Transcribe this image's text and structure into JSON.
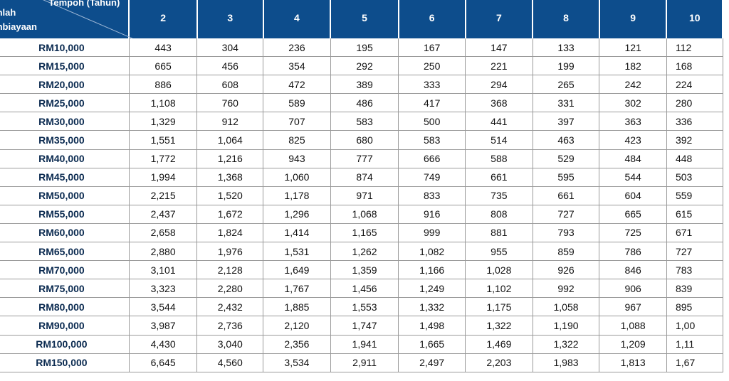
{
  "header": {
    "tenure_label": "Tempoh (Tahun)",
    "amount_label_1": "mlah",
    "amount_label_2": "mbiayaan",
    "years": [
      "2",
      "3",
      "4",
      "5",
      "6",
      "7",
      "8",
      "9",
      "10"
    ]
  },
  "rows": [
    {
      "amount": "RM10,000",
      "values": [
        "443",
        "304",
        "236",
        "195",
        "167",
        "147",
        "133",
        "121",
        "112"
      ]
    },
    {
      "amount": "RM15,000",
      "values": [
        "665",
        "456",
        "354",
        "292",
        "250",
        "221",
        "199",
        "182",
        "168"
      ]
    },
    {
      "amount": "RM20,000",
      "values": [
        "886",
        "608",
        "472",
        "389",
        "333",
        "294",
        "265",
        "242",
        "224"
      ]
    },
    {
      "amount": "RM25,000",
      "values": [
        "1,108",
        "760",
        "589",
        "486",
        "417",
        "368",
        "331",
        "302",
        "280"
      ]
    },
    {
      "amount": "RM30,000",
      "values": [
        "1,329",
        "912",
        "707",
        "583",
        "500",
        "441",
        "397",
        "363",
        "336"
      ]
    },
    {
      "amount": "RM35,000",
      "values": [
        "1,551",
        "1,064",
        "825",
        "680",
        "583",
        "514",
        "463",
        "423",
        "392"
      ]
    },
    {
      "amount": "RM40,000",
      "values": [
        "1,772",
        "1,216",
        "943",
        "777",
        "666",
        "588",
        "529",
        "484",
        "448"
      ]
    },
    {
      "amount": "RM45,000",
      "values": [
        "1,994",
        "1,368",
        "1,060",
        "874",
        "749",
        "661",
        "595",
        "544",
        "503"
      ]
    },
    {
      "amount": "RM50,000",
      "values": [
        "2,215",
        "1,520",
        "1,178",
        "971",
        "833",
        "735",
        "661",
        "604",
        "559"
      ]
    },
    {
      "amount": "RM55,000",
      "values": [
        "2,437",
        "1,672",
        "1,296",
        "1,068",
        "916",
        "808",
        "727",
        "665",
        "615"
      ]
    },
    {
      "amount": "RM60,000",
      "values": [
        "2,658",
        "1,824",
        "1,414",
        "1,165",
        "999",
        "881",
        "793",
        "725",
        "671"
      ]
    },
    {
      "amount": "RM65,000",
      "values": [
        "2,880",
        "1,976",
        "1,531",
        "1,262",
        "1,082",
        "955",
        "859",
        "786",
        "727"
      ]
    },
    {
      "amount": "RM70,000",
      "values": [
        "3,101",
        "2,128",
        "1,649",
        "1,359",
        "1,166",
        "1,028",
        "926",
        "846",
        "783"
      ]
    },
    {
      "amount": "RM75,000",
      "values": [
        "3,323",
        "2,280",
        "1,767",
        "1,456",
        "1,249",
        "1,102",
        "992",
        "906",
        "839"
      ]
    },
    {
      "amount": "RM80,000",
      "values": [
        "3,544",
        "2,432",
        "1,885",
        "1,553",
        "1,332",
        "1,175",
        "1,058",
        "967",
        "895"
      ]
    },
    {
      "amount": "RM90,000",
      "values": [
        "3,987",
        "2,736",
        "2,120",
        "1,747",
        "1,498",
        "1,322",
        "1,190",
        "1,088",
        "1,00"
      ]
    },
    {
      "amount": "RM100,000",
      "values": [
        "4,430",
        "3,040",
        "2,356",
        "1,941",
        "1,665",
        "1,469",
        "1,322",
        "1,209",
        "1,11"
      ]
    },
    {
      "amount": "RM150,000",
      "values": [
        "6,645",
        "4,560",
        "3,534",
        "2,911",
        "2,497",
        "2,203",
        "1,983",
        "1,813",
        "1,67"
      ]
    }
  ],
  "colors": {
    "header_bg": "#0d4d8c",
    "header_text": "#ffffff",
    "grid_line": "#9a9a9a"
  }
}
